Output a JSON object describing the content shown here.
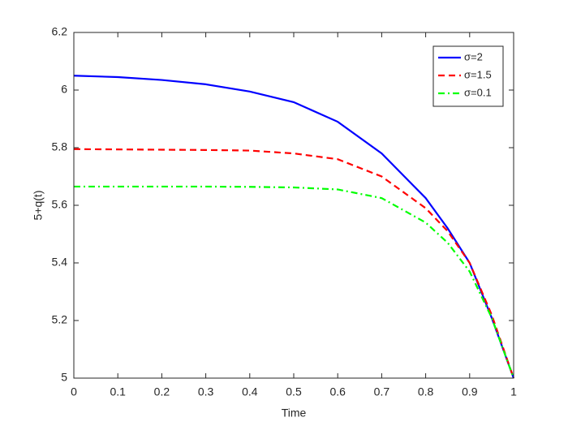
{
  "chart_data": {
    "type": "line",
    "xlabel": "Time",
    "ylabel": "5+q(t)",
    "x": [
      0,
      0.1,
      0.2,
      0.3,
      0.4,
      0.5,
      0.6,
      0.7,
      0.8,
      0.85,
      0.9,
      0.95,
      1
    ],
    "series": [
      {
        "name": "σ=2",
        "color": "#0000ff",
        "linestyle": "-",
        "values": [
          6.05,
          6.045,
          6.035,
          6.02,
          5.995,
          5.958,
          5.89,
          5.78,
          5.625,
          5.52,
          5.4,
          5.21,
          5.0
        ]
      },
      {
        "name": "σ=1.5",
        "color": "#ff0000",
        "linestyle": "--",
        "values": [
          5.795,
          5.794,
          5.793,
          5.792,
          5.79,
          5.78,
          5.76,
          5.7,
          5.59,
          5.51,
          5.4,
          5.22,
          5.0
        ]
      },
      {
        "name": "σ=0.1",
        "color": "#00ff00",
        "linestyle": "-.",
        "values": [
          5.665,
          5.665,
          5.665,
          5.665,
          5.664,
          5.662,
          5.655,
          5.625,
          5.54,
          5.47,
          5.37,
          5.21,
          5.0
        ]
      }
    ],
    "xlim": [
      0,
      1
    ],
    "xticks": [
      0,
      0.1,
      0.2,
      0.3,
      0.4,
      0.5,
      0.6,
      0.7,
      0.8,
      0.9,
      1
    ],
    "ylim": [
      5,
      6.2
    ],
    "yticks": [
      5,
      5.2,
      5.4,
      5.6,
      5.8,
      6,
      6.2
    ],
    "grid": false,
    "legend": "upper right"
  }
}
